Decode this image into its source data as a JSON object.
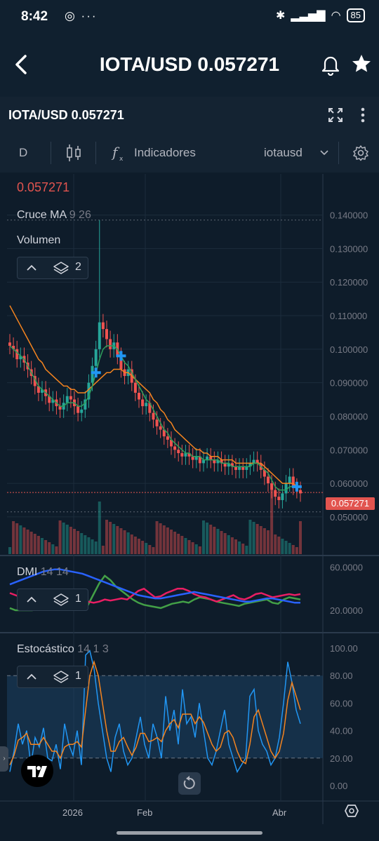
{
  "status": {
    "time": "8:42",
    "battery": "85",
    "left_icons": "◎ ···"
  },
  "appbar": {
    "title": "IOTA/USD 0.057271",
    "back_icon": "back-arrow-icon",
    "bell_icon": "bell-icon",
    "star_icon": "star-icon"
  },
  "chart_header": {
    "symbol": "IOTA/USD 0.057271"
  },
  "toolbar": {
    "interval": "D",
    "indicators_label": "Indicadores",
    "symbol_select": "iotausd"
  },
  "legend": {
    "price": "0.057271",
    "ma_name": "Cruce MA",
    "ma_params": "9 26",
    "volume_name": "Volumen",
    "main_layers_count": "2",
    "dmi_name": "DMI",
    "dmi_params": "14 14",
    "dmi_layers_count": "1",
    "stoch_name": "Estocástico",
    "stoch_params": "14 1 3",
    "stoch_layers_count": "1"
  },
  "price_tag": "0.057271",
  "colors": {
    "up": "#26a69a",
    "down": "#ef5350",
    "ma_fast": "#2e9e5b",
    "ma_slow": "#f5841f",
    "dmi_plus": "#43a047",
    "dmi_minus": "#e91e63",
    "dmi_adx": "#2962ff",
    "stoch_k": "#2196f3",
    "stoch_d": "#f5841f"
  },
  "chart_data": [
    {
      "type": "candlestick",
      "title": "IOTA/USD",
      "y_ticks": [
        "0.140000",
        "0.130000",
        "0.120000",
        "0.110000",
        "0.100000",
        "0.090000",
        "0.080000",
        "0.070000",
        "0.060000",
        "0.050000"
      ],
      "x_ticks": [
        "2026",
        "Feb",
        "Abr"
      ],
      "ylim": [
        0.046,
        0.142
      ],
      "last_price": 0.057271,
      "close": [
        0.101,
        0.1,
        0.097,
        0.098,
        0.096,
        0.094,
        0.092,
        0.089,
        0.087,
        0.088,
        0.086,
        0.084,
        0.085,
        0.083,
        0.082,
        0.084,
        0.086,
        0.085,
        0.083,
        0.081,
        0.082,
        0.085,
        0.09,
        0.095,
        0.1,
        0.108,
        0.106,
        0.103,
        0.1,
        0.102,
        0.098,
        0.094,
        0.092,
        0.094,
        0.09,
        0.087,
        0.085,
        0.083,
        0.084,
        0.081,
        0.079,
        0.077,
        0.076,
        0.074,
        0.073,
        0.071,
        0.07,
        0.069,
        0.068,
        0.069,
        0.068,
        0.067,
        0.068,
        0.066,
        0.067,
        0.068,
        0.067,
        0.066,
        0.067,
        0.066,
        0.065,
        0.066,
        0.065,
        0.064,
        0.065,
        0.064,
        0.065,
        0.066,
        0.067,
        0.066,
        0.064,
        0.062,
        0.06,
        0.058,
        0.056,
        0.055,
        0.057,
        0.06,
        0.062,
        0.059,
        0.058,
        0.057
      ],
      "ma_fast": [
        0.101,
        0.1,
        0.099,
        0.098,
        0.097,
        0.095,
        0.093,
        0.091,
        0.089,
        0.088,
        0.087,
        0.086,
        0.085,
        0.084,
        0.083,
        0.083,
        0.084,
        0.084,
        0.084,
        0.083,
        0.083,
        0.084,
        0.086,
        0.089,
        0.093,
        0.097,
        0.1,
        0.101,
        0.101,
        0.101,
        0.1,
        0.098,
        0.096,
        0.095,
        0.093,
        0.091,
        0.089,
        0.087,
        0.085,
        0.084,
        0.082,
        0.08,
        0.078,
        0.076,
        0.075,
        0.073,
        0.072,
        0.071,
        0.07,
        0.069,
        0.069,
        0.068,
        0.068,
        0.068,
        0.067,
        0.067,
        0.067,
        0.067,
        0.067,
        0.066,
        0.066,
        0.066,
        0.065,
        0.065,
        0.065,
        0.065,
        0.065,
        0.065,
        0.066,
        0.066,
        0.065,
        0.064,
        0.063,
        0.061,
        0.059,
        0.058,
        0.058,
        0.058,
        0.059,
        0.059,
        0.059,
        0.059
      ],
      "ma_slow": [
        0.113,
        0.111,
        0.109,
        0.107,
        0.105,
        0.103,
        0.101,
        0.099,
        0.097,
        0.096,
        0.094,
        0.093,
        0.092,
        0.091,
        0.09,
        0.089,
        0.089,
        0.088,
        0.088,
        0.087,
        0.087,
        0.087,
        0.088,
        0.089,
        0.09,
        0.091,
        0.092,
        0.093,
        0.093,
        0.094,
        0.094,
        0.094,
        0.093,
        0.093,
        0.092,
        0.091,
        0.09,
        0.089,
        0.088,
        0.087,
        0.085,
        0.084,
        0.082,
        0.081,
        0.079,
        0.078,
        0.076,
        0.075,
        0.074,
        0.073,
        0.072,
        0.071,
        0.07,
        0.07,
        0.069,
        0.069,
        0.068,
        0.068,
        0.068,
        0.067,
        0.067,
        0.067,
        0.067,
        0.066,
        0.066,
        0.066,
        0.066,
        0.066,
        0.066,
        0.066,
        0.066,
        0.065,
        0.064,
        0.063,
        0.062,
        0.061,
        0.06,
        0.06,
        0.06,
        0.06,
        0.059,
        0.059
      ],
      "cross_markers_index": [
        24,
        31,
        80
      ]
    },
    {
      "type": "line",
      "title": "DMI",
      "y_ticks": [
        "60.0000",
        "20.0000"
      ],
      "ylim": [
        5,
        65
      ],
      "series": [
        {
          "values": [
            22,
            20,
            20,
            20,
            20,
            21,
            22,
            21,
            22,
            22,
            23,
            23,
            23,
            24,
            25,
            35,
            45,
            52,
            48,
            42,
            38,
            34,
            30,
            27,
            25,
            24,
            23,
            22,
            24,
            26,
            27,
            28,
            27,
            30,
            32,
            31,
            30,
            28,
            27,
            26,
            25,
            24,
            26,
            27,
            28,
            29,
            30,
            27,
            26,
            30,
            32,
            31,
            30
          ]
        },
        {
          "values": [
            36,
            34,
            32,
            30,
            31,
            33,
            35,
            34,
            32,
            30,
            31,
            32,
            30,
            29,
            28,
            27,
            28,
            30,
            29,
            30,
            31,
            30,
            34,
            38,
            40,
            36,
            32,
            33,
            36,
            38,
            40,
            40,
            38,
            35,
            33,
            32,
            30,
            28,
            30,
            32,
            34,
            31,
            30,
            32,
            35,
            36,
            34,
            32,
            33,
            34,
            35,
            34,
            35
          ]
        },
        {
          "values": [
            44,
            46,
            48,
            50,
            52,
            54,
            56,
            57,
            58,
            58,
            57,
            56,
            55,
            54,
            52,
            50,
            48,
            46,
            44,
            42,
            40,
            38,
            36,
            34,
            33,
            32,
            31,
            31,
            32,
            33,
            34,
            35,
            36,
            37,
            36,
            35,
            34,
            33,
            32,
            31,
            30,
            29,
            28,
            28,
            29,
            30,
            31,
            31,
            30,
            29,
            28,
            27,
            27
          ]
        }
      ]
    },
    {
      "type": "line",
      "title": "Estocástico",
      "y_ticks": [
        "100.00",
        "80.00",
        "60.00",
        "40.00",
        "20.00",
        "0.00"
      ],
      "ylim": [
        0,
        100
      ],
      "bands": [
        20,
        80
      ],
      "series": [
        {
          "values": [
            10,
            25,
            45,
            30,
            40,
            15,
            35,
            28,
            42,
            20,
            18,
            30,
            12,
            45,
            30,
            22,
            40,
            15,
            95,
            98,
            85,
            60,
            40,
            20,
            10,
            35,
            45,
            25,
            15,
            20,
            35,
            50,
            30,
            20,
            45,
            35,
            20,
            65,
            40,
            55,
            30,
            70,
            45,
            50,
            35,
            60,
            40,
            20,
            15,
            25,
            40,
            55,
            30,
            20,
            10,
            15,
            20,
            65,
            70,
            40,
            30,
            25,
            15,
            20,
            35,
            60,
            90,
            75,
            55,
            45
          ]
        },
        {
          "values": [
            15,
            22,
            33,
            35,
            38,
            30,
            30,
            30,
            35,
            30,
            25,
            25,
            20,
            28,
            30,
            30,
            32,
            28,
            55,
            80,
            90,
            80,
            60,
            40,
            25,
            25,
            32,
            35,
            28,
            22,
            28,
            38,
            38,
            32,
            33,
            35,
            32,
            40,
            45,
            48,
            42,
            52,
            52,
            52,
            45,
            50,
            46,
            38,
            30,
            25,
            28,
            38,
            40,
            35,
            25,
            18,
            16,
            30,
            50,
            55,
            45,
            35,
            25,
            20,
            25,
            38,
            62,
            75,
            65,
            55
          ]
        }
      ]
    }
  ]
}
